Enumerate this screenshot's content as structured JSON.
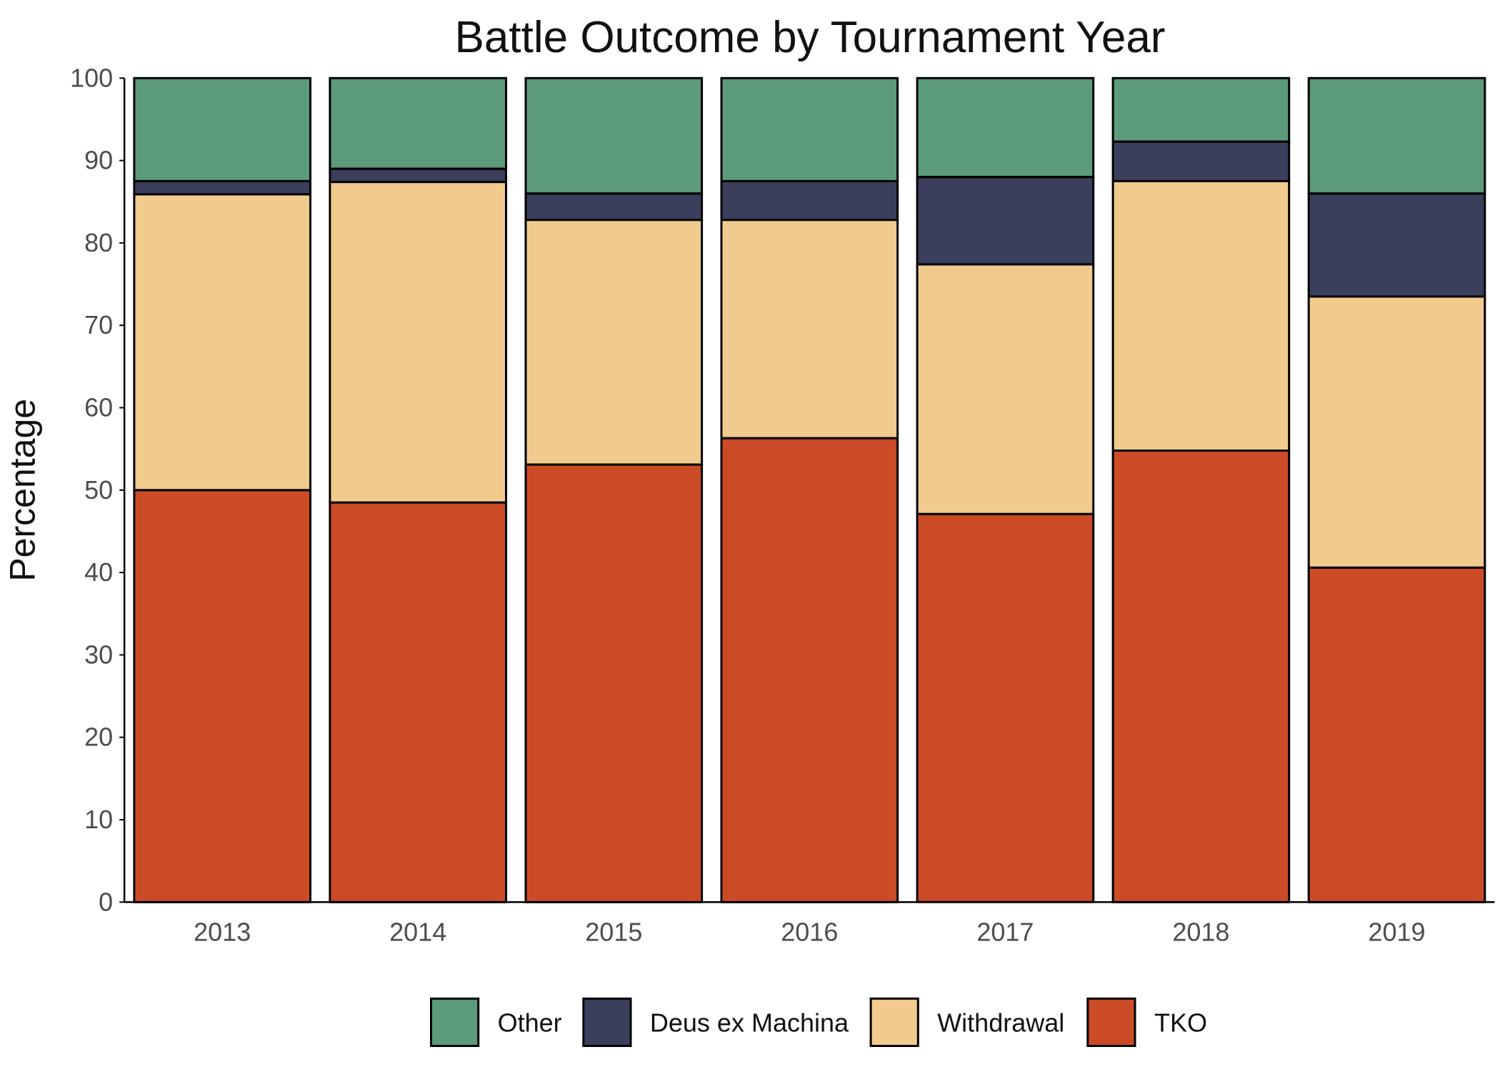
{
  "chart_data": {
    "type": "bar",
    "stacked": true,
    "title": "Battle Outcome by Tournament Year",
    "xlabel": "",
    "ylabel": "Percentage",
    "ylim": [
      0,
      100
    ],
    "yticks": [
      0,
      10,
      20,
      30,
      40,
      50,
      60,
      70,
      80,
      90,
      100
    ],
    "grid": false,
    "legend_position": "bottom",
    "categories": [
      "2013",
      "2014",
      "2015",
      "2016",
      "2017",
      "2018",
      "2019"
    ],
    "series": [
      {
        "name": "TKO",
        "color": "#cc4b27",
        "values": [
          50.0,
          48.5,
          53.1,
          56.3,
          47.1,
          54.8,
          40.6
        ]
      },
      {
        "name": "Withdrawal",
        "color": "#f1cb8e",
        "values": [
          35.9,
          38.9,
          29.7,
          26.5,
          30.3,
          32.7,
          32.9
        ]
      },
      {
        "name": "Deus ex Machina",
        "color": "#3b3f5c",
        "values": [
          1.6,
          1.6,
          3.2,
          4.7,
          10.6,
          4.8,
          12.5
        ]
      },
      {
        "name": "Other",
        "color": "#5b9a7a",
        "values": [
          12.5,
          11.0,
          14.0,
          12.5,
          12.0,
          7.7,
          14.0
        ]
      }
    ],
    "legend_order": [
      "Other",
      "Deus ex Machina",
      "Withdrawal",
      "TKO"
    ]
  }
}
